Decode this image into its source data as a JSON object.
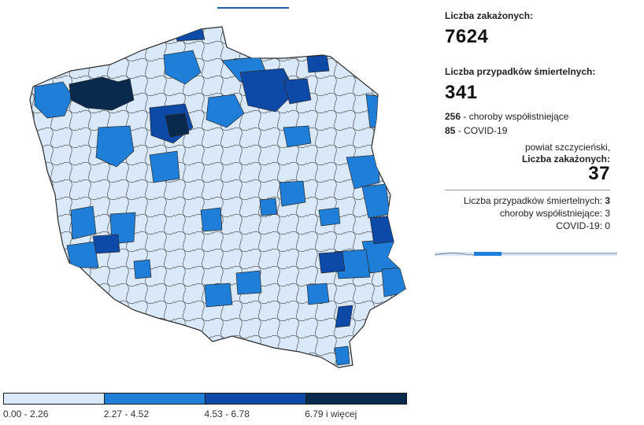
{
  "stats": {
    "infected_label": "Liczba zakażonych:",
    "infected_value": "7624",
    "deaths_label": "Liczba przypadków śmiertelnych:",
    "deaths_value": "341",
    "comorbid_value": "256",
    "comorbid_label": " - choroby współistniejące",
    "covid_value": "85",
    "covid_label": " - COVID-19"
  },
  "tooltip": {
    "county": "powiat szczycieński,",
    "infected_label": "Liczba zakażonych:",
    "infected_value": "37",
    "deaths_label": "Liczba przypadków śmiertelnych:",
    "deaths_value": "3",
    "comorbid_label": "choroby współistniejące:",
    "comorbid_value": "3",
    "covid_label": "COVID-19:",
    "covid_value": "0"
  },
  "legend": [
    {
      "label": "0.00 - 2.26",
      "color": "#d9e9fa"
    },
    {
      "label": "2.27 - 4.52",
      "color": "#1f7fd8"
    },
    {
      "label": "4.53 - 6.78",
      "color": "#0d4aa8"
    },
    {
      "label": "6.79 i więcej",
      "color": "#0a2a4d"
    }
  ],
  "map": {
    "base_color": "#d9e9fa",
    "border_color": "#3a3a3a"
  }
}
